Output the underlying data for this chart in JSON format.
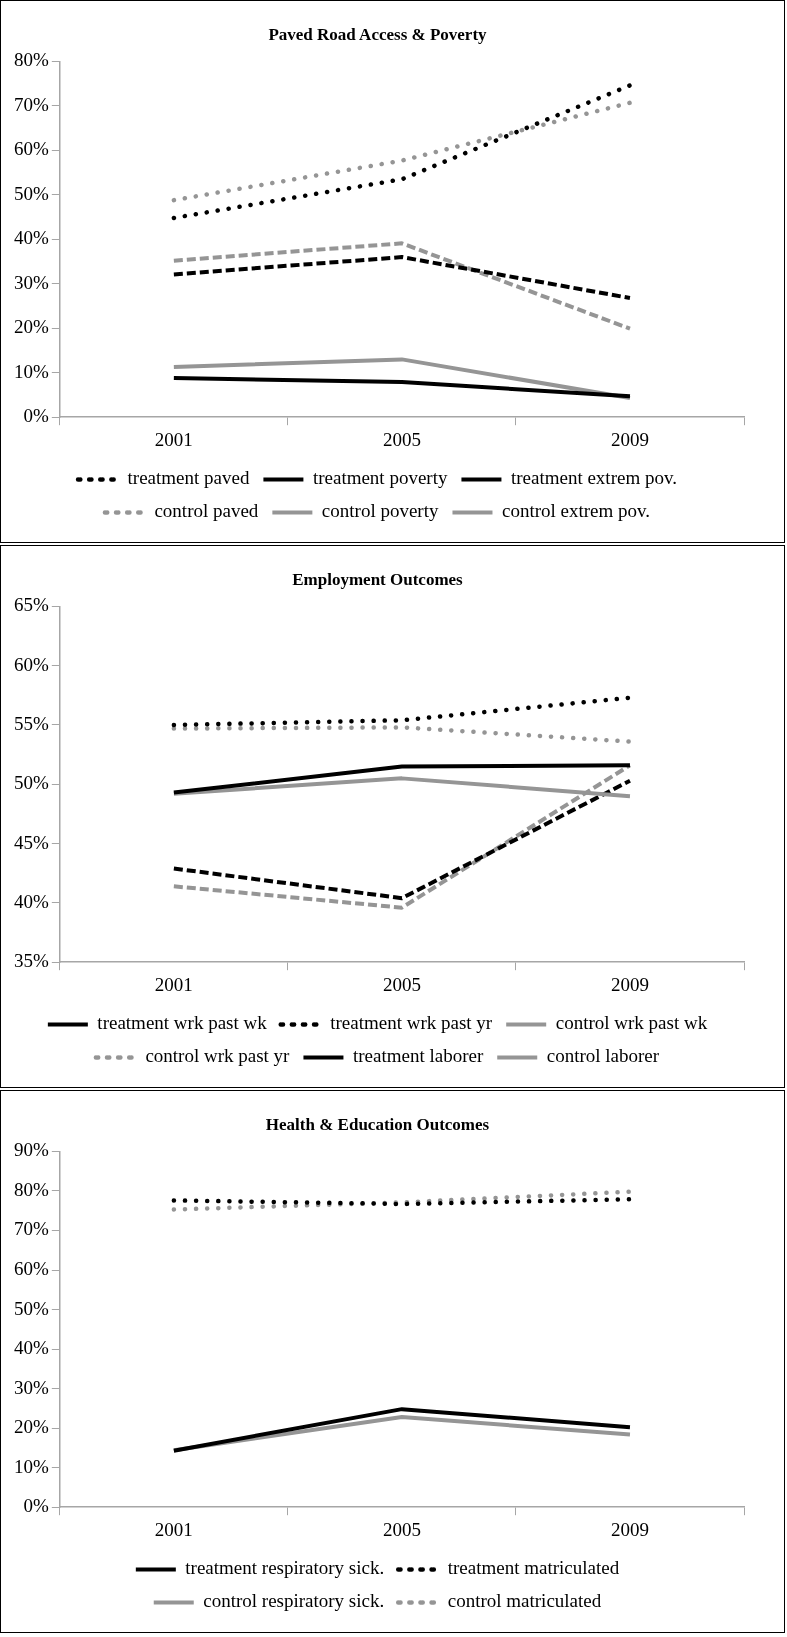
{
  "chart_data": [
    {
      "type": "line",
      "title": "Paved Road Access & Poverty",
      "categories": [
        "2001",
        "2005",
        "2009"
      ],
      "ylim": [
        0,
        0.8
      ],
      "yticks": [
        {
          "value": 0,
          "label": "0%"
        },
        {
          "value": 0.1,
          "label": "10%"
        },
        {
          "value": 0.2,
          "label": "20%"
        },
        {
          "value": 0.3,
          "label": "30%"
        },
        {
          "value": 0.4,
          "label": "40%"
        },
        {
          "value": 0.5,
          "label": "50%"
        },
        {
          "value": 0.6,
          "label": "60%"
        },
        {
          "value": 0.7,
          "label": "70%"
        },
        {
          "value": 0.8,
          "label": "80%"
        }
      ],
      "legend": "bottom",
      "marker": "none",
      "series": [
        {
          "name": "treatment paved",
          "color": "#000000",
          "line_style": "dotted",
          "values": [
            0.448,
            0.535,
            0.746
          ]
        },
        {
          "name": "treatment poverty",
          "color": "#000000",
          "line_style": "dashed",
          "values": [
            0.321,
            0.36,
            0.268
          ]
        },
        {
          "name": "treatment extrem pov.",
          "color": "#000000",
          "line_style": "solid",
          "values": [
            0.088,
            0.079,
            0.047
          ]
        },
        {
          "name": "control paved",
          "color": "#959595",
          "line_style": "dotted",
          "values": [
            0.488,
            0.577,
            0.707
          ]
        },
        {
          "name": "control poverty",
          "color": "#959595",
          "line_style": "dashed",
          "values": [
            0.352,
            0.391,
            0.199
          ]
        },
        {
          "name": "control extrem pov.",
          "color": "#959595",
          "line_style": "solid",
          "values": [
            0.113,
            0.13,
            0.043
          ]
        }
      ]
    },
    {
      "type": "line",
      "title": "Employment Outcomes",
      "categories": [
        "2001",
        "2005",
        "2009"
      ],
      "ylim": [
        0.35,
        0.65
      ],
      "yticks": [
        {
          "value": 0.35,
          "label": "35%"
        },
        {
          "value": 0.4,
          "label": "40%"
        },
        {
          "value": 0.45,
          "label": "45%"
        },
        {
          "value": 0.5,
          "label": "50%"
        },
        {
          "value": 0.55,
          "label": "55%"
        },
        {
          "value": 0.6,
          "label": "60%"
        },
        {
          "value": 0.65,
          "label": "65%"
        }
      ],
      "legend": "bottom",
      "marker": "none",
      "series": [
        {
          "name": "treatment wrk past wk",
          "color": "#000000",
          "line_style": "solid",
          "values": [
            0.493,
            0.515,
            0.516
          ]
        },
        {
          "name": "treatment wrk past yr",
          "color": "#000000",
          "line_style": "dotted",
          "values": [
            0.55,
            0.554,
            0.573
          ]
        },
        {
          "name": "control wrk past wk",
          "color": "#959595",
          "line_style": "solid",
          "values": [
            0.492,
            0.505,
            0.49
          ]
        },
        {
          "name": "control wrk past yr",
          "color": "#959595",
          "line_style": "dotted",
          "values": [
            0.547,
            0.548,
            0.536
          ]
        },
        {
          "name": "treatment laborer",
          "color": "#000000",
          "line_style": "dashed",
          "values": [
            0.429,
            0.404,
            0.503
          ]
        },
        {
          "name": "control laborer",
          "color": "#959595",
          "line_style": "dashed",
          "values": [
            0.414,
            0.396,
            0.516
          ]
        }
      ]
    },
    {
      "type": "line",
      "title": "Health & Education Outcomes",
      "categories": [
        "2001",
        "2005",
        "2009"
      ],
      "ylim": [
        0,
        0.9
      ],
      "yticks": [
        {
          "value": 0,
          "label": "0%"
        },
        {
          "value": 0.1,
          "label": "10%"
        },
        {
          "value": 0.2,
          "label": "20%"
        },
        {
          "value": 0.3,
          "label": "30%"
        },
        {
          "value": 0.4,
          "label": "40%"
        },
        {
          "value": 0.5,
          "label": "50%"
        },
        {
          "value": 0.6,
          "label": "60%"
        },
        {
          "value": 0.7,
          "label": "70%"
        },
        {
          "value": 0.8,
          "label": "80%"
        },
        {
          "value": 0.9,
          "label": "90%"
        }
      ],
      "legend": "bottom",
      "marker": "none",
      "series": [
        {
          "name": "treatment respiratory sick.",
          "color": "#000000",
          "line_style": "solid",
          "values": [
            0.143,
            0.248,
            0.202
          ]
        },
        {
          "name": "treatment matriculated",
          "color": "#000000",
          "line_style": "dotted",
          "values": [
            0.776,
            0.767,
            0.779
          ]
        },
        {
          "name": "control respiratory sick.",
          "color": "#959595",
          "line_style": "solid",
          "values": [
            0.144,
            0.228,
            0.184
          ]
        },
        {
          "name": "control matriculated",
          "color": "#959595",
          "line_style": "dotted",
          "values": [
            0.753,
            0.771,
            0.798
          ]
        }
      ]
    }
  ]
}
